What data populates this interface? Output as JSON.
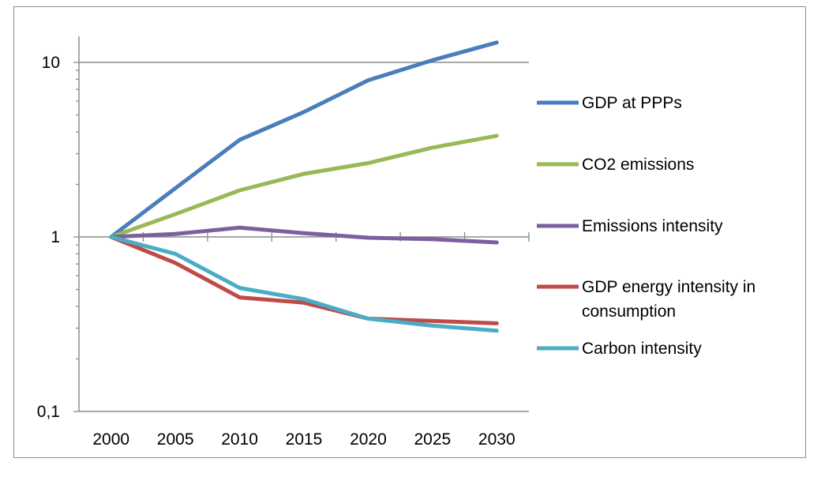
{
  "chart_data": {
    "type": "line",
    "title": "",
    "xlabel": "",
    "ylabel": "",
    "yscale": "log",
    "ylim": [
      0.1,
      14
    ],
    "grid": "major horizontal gridlines at 1 and 10",
    "legend_position": "right",
    "x": [
      2000,
      2005,
      2010,
      2015,
      2020,
      2025,
      2030
    ],
    "x_tick_labels": [
      "2000",
      "2005",
      "2010",
      "2015",
      "2020",
      "2025",
      "2030"
    ],
    "y_tick_labels": [
      "0,1",
      "1",
      "10"
    ],
    "y_ticks": [
      0.1,
      1,
      10
    ],
    "series": [
      {
        "name": "GDP at PPPs",
        "color": "#4a7ebb",
        "values": [
          1,
          1.9,
          3.6,
          5.2,
          7.9,
          10.3,
          13.0
        ]
      },
      {
        "name": "CO2 emissions",
        "color": "#98b954",
        "values": [
          1,
          1.35,
          1.85,
          2.3,
          2.65,
          3.25,
          3.8
        ]
      },
      {
        "name": "Emissions intensity",
        "color": "#7d5fa0",
        "values": [
          1,
          1.04,
          1.13,
          1.05,
          0.99,
          0.97,
          0.93
        ]
      },
      {
        "name": "GDP energy intensity in consumption",
        "legend_lines": [
          "GDP energy intensity in",
          "consumption"
        ],
        "color": "#be4b48",
        "values": [
          1,
          0.71,
          0.45,
          0.42,
          0.34,
          0.33,
          0.32
        ]
      },
      {
        "name": "Carbon intensity",
        "color": "#4bacc6",
        "values": [
          1,
          0.8,
          0.51,
          0.44,
          0.34,
          0.31,
          0.29
        ]
      }
    ]
  }
}
